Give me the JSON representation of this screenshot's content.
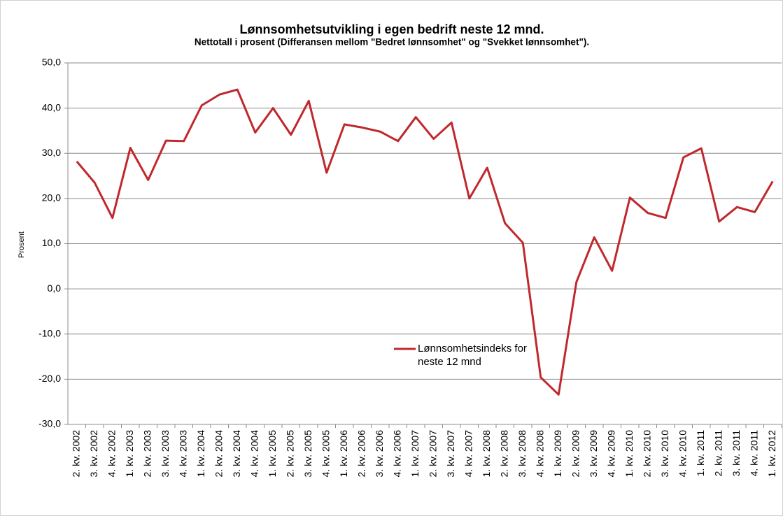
{
  "chart_data": {
    "type": "line",
    "title": "Lønnsomhetsutvikling i egen bedrift neste 12 mnd.",
    "subtitle": "Nettotall i prosent (Differansen mellom \"Bedret lønnsomhet\" og \"Svekket lønnsomhet\").",
    "y_label": "Prosent",
    "categories": [
      "2. kv. 2002",
      "3. kv. 2002",
      "4. kv. 2002",
      "1. kv. 2003",
      "2. kv. 2003",
      "3. kv. 2003",
      "4. kv. 2003",
      "1. kv. 2004",
      "2. kv. 2004",
      "3. kv. 2004",
      "4. kv. 2004",
      "1. kv. 2005",
      "2. kv. 2005",
      "3. kv. 2005",
      "4. kv. 2005",
      "1. kv. 2006",
      "2. kv. 2006",
      "3. kv. 2006",
      "4. kv. 2006",
      "1. kv. 2007",
      "2. kv. 2007",
      "3. kv. 2007",
      "4. kv. 2007",
      "1. kv. 2008",
      "2. kv. 2008",
      "3. kv. 2008",
      "4. kv. 2008",
      "1. kv. 2009",
      "2. kv. 2009",
      "3. kv. 2009",
      "4. kv. 2009",
      "1. kv. 2010",
      "2. kv. 2010",
      "3. kv. 2010",
      "4. kv. 2010",
      "1. kv. 2011",
      "2. kv. 2011",
      "3. kv. 2011",
      "4. kv. 2011",
      "1. kv. 2012"
    ],
    "series": [
      {
        "name": "Lønnsomhetsindeks for neste 12 mnd",
        "color": "#c0282d",
        "values": [
          28.2,
          23.5,
          15.7,
          31.2,
          24.1,
          32.8,
          32.7,
          40.6,
          43.0,
          44.1,
          34.6,
          40.0,
          34.1,
          41.6,
          25.7,
          36.4,
          35.7,
          34.8,
          32.7,
          38.0,
          33.2,
          36.8,
          20.0,
          26.8,
          14.5,
          10.2,
          -19.6,
          -23.4,
          1.5,
          11.4,
          4.0,
          20.2,
          16.8,
          15.7,
          29.1,
          31.1,
          14.9,
          18.1,
          17.0,
          23.8
        ]
      }
    ],
    "ylim": [
      -30,
      50
    ],
    "yticks": [
      {
        "value": -30,
        "label": "-30,0"
      },
      {
        "value": -20,
        "label": "-20,0"
      },
      {
        "value": -10,
        "label": "-10,0"
      },
      {
        "value": 0,
        "label": "0,0"
      },
      {
        "value": 10,
        "label": "10,0"
      },
      {
        "value": 20,
        "label": "20,0"
      },
      {
        "value": 30,
        "label": "30,0"
      },
      {
        "value": 40,
        "label": "40,0"
      },
      {
        "value": 50,
        "label": "50,0"
      }
    ],
    "grid": true
  }
}
